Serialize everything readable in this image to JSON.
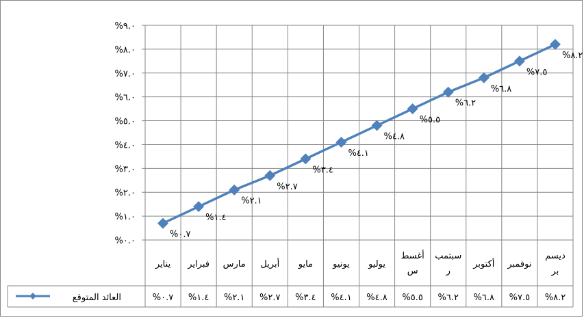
{
  "chart_data": {
    "type": "line",
    "title": "",
    "xlabel": "",
    "ylabel": "",
    "ylim": [
      0,
      9
    ],
    "y_ticks": [
      "%٠.٠",
      "%١.٠",
      "%٢.٠",
      "%٣.٠",
      "%٤.٠",
      "%٥.٠",
      "%٦.٠",
      "%٧.٠",
      "%٨.٠",
      "%٩.٠"
    ],
    "y_tick_values": [
      0,
      1,
      2,
      3,
      4,
      5,
      6,
      7,
      8,
      9
    ],
    "categories": [
      [
        "يناير"
      ],
      [
        "فبراير"
      ],
      [
        "مارس"
      ],
      [
        "أبريل"
      ],
      [
        "مايو"
      ],
      [
        "يونيو"
      ],
      [
        "يوليو"
      ],
      [
        "أغسط",
        "س"
      ],
      [
        "سبتمب",
        "ر"
      ],
      [
        "أكتوبر"
      ],
      [
        "نوفمبر"
      ],
      [
        "ديسم",
        "بر"
      ]
    ],
    "series": [
      {
        "name": "العائد المتوقع",
        "values": [
          0.7,
          1.4,
          2.1,
          2.7,
          3.4,
          4.1,
          4.8,
          5.5,
          6.2,
          6.8,
          7.5,
          8.2
        ],
        "labels": [
          "%٠.٧",
          "%١.٤",
          "%٢.١",
          "%٢.٧",
          "%٣.٤",
          "%٤.١",
          "%٤.٨",
          "%٥.٥",
          "%٦.٢",
          "%٦.٨",
          "%٧.٥",
          "%٨.٢"
        ],
        "color": "#4F81BD"
      }
    ],
    "grid": true,
    "legend": "data-table-left"
  }
}
